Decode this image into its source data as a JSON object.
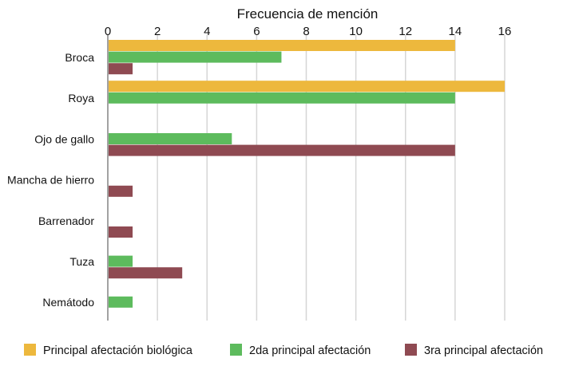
{
  "chart_data": {
    "type": "bar",
    "orientation": "horizontal",
    "title": "Frecuencia de mención",
    "xlabel": "",
    "ylabel": "",
    "xlim": [
      0,
      16
    ],
    "x_ticks": [
      0,
      2,
      4,
      6,
      8,
      10,
      12,
      14,
      16
    ],
    "grid": true,
    "legend_position": "bottom",
    "categories": [
      "Broca",
      "Roya",
      "Ojo de gallo",
      "Mancha de hierro",
      "Barrenador",
      "Tuza",
      "Nemátodo"
    ],
    "series": [
      {
        "name": "Principal afectación biológica",
        "color": "#EDB83D",
        "values": [
          14,
          16,
          0,
          0,
          0,
          0,
          0
        ]
      },
      {
        "name": "2da principal afectación",
        "color": "#5DBB5D",
        "values": [
          7,
          14,
          5,
          0,
          0,
          1,
          1
        ]
      },
      {
        "name": "3ra principal afectación",
        "color": "#8F4A52",
        "values": [
          1,
          0,
          14,
          1,
          1,
          3,
          0
        ]
      }
    ]
  }
}
